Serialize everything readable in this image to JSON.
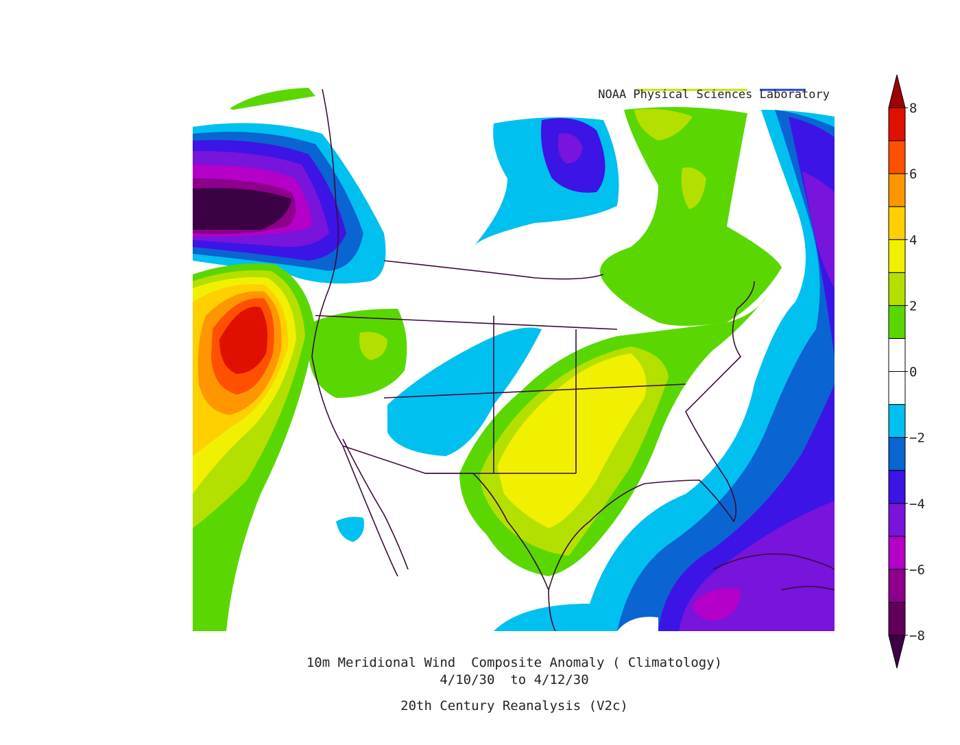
{
  "header": {
    "credit": "NOAA Physical Sciences Laboratory"
  },
  "title": {
    "line1": "10m Meridional Wind  Composite Anomaly ( Climatology)",
    "line2": "4/10/30  to 4/12/30",
    "line3": "20th Century Reanalysis (V2c)"
  },
  "colorbar": {
    "levels": [
      -8,
      -7,
      -6,
      -5,
      -4,
      -3,
      -2,
      -1,
      0,
      1,
      2,
      3,
      4,
      5,
      6,
      7,
      8
    ],
    "colors": [
      "#3c0045",
      "#600058",
      "#8c008c",
      "#b400c8",
      "#7814dc",
      "#3c14e6",
      "#0a64d2",
      "#00c0f0",
      "#ffffff",
      "#ffffff",
      "#5ad700",
      "#b4e000",
      "#f0f000",
      "#ffd000",
      "#ff9600",
      "#ff5000",
      "#e01000",
      "#a00000"
    ],
    "ticks": [
      8,
      6,
      4,
      2,
      0,
      {
        "value": -2,
        "label": "−2"
      },
      {
        "value": -4,
        "label": "−4"
      },
      {
        "value": -6,
        "label": "−6"
      },
      {
        "value": -8,
        "label": "−8"
      }
    ]
  }
}
